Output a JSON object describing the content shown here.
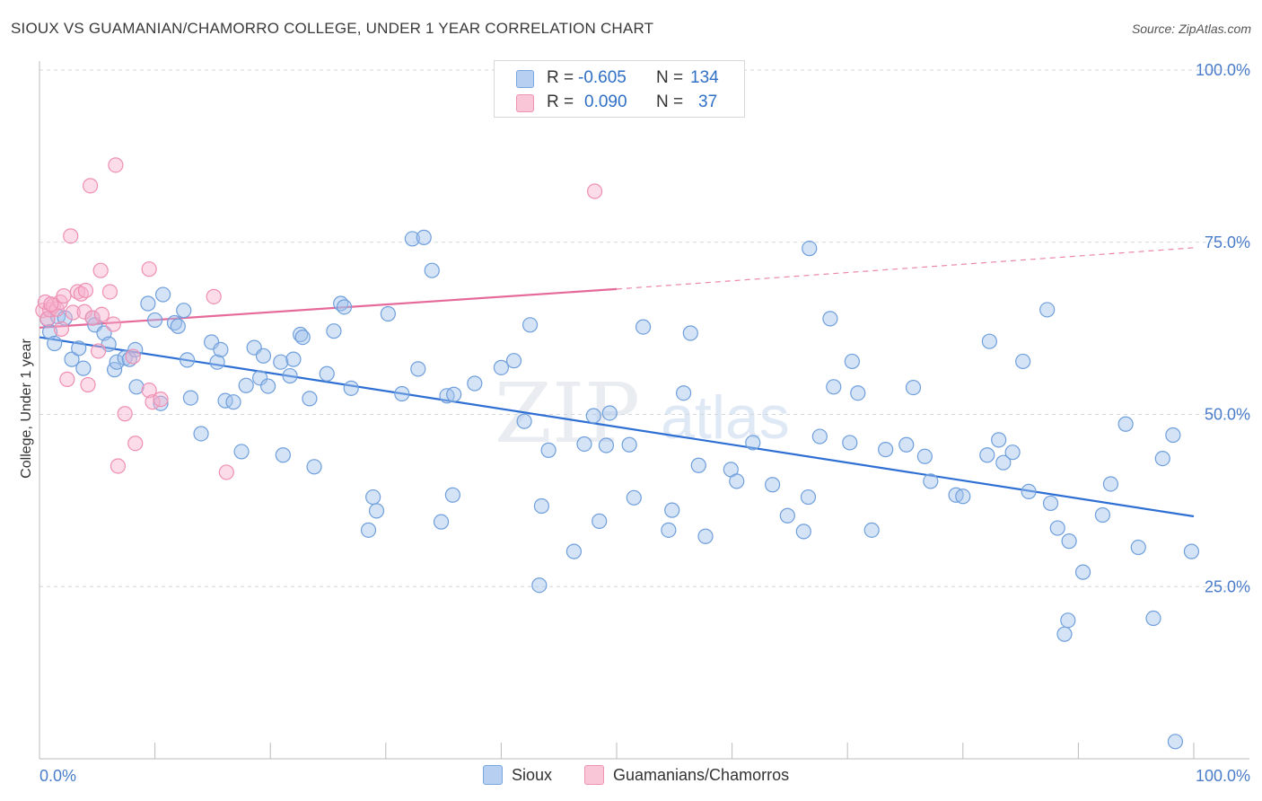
{
  "title": "SIOUX VS GUAMANIAN/CHAMORRO COLLEGE, UNDER 1 YEAR CORRELATION CHART",
  "source": "Source: ZipAtlas.com",
  "watermark": {
    "zip": "ZIP",
    "atlas": "atlas"
  },
  "stats": [
    {
      "r_label": "R =",
      "r_value": "-0.605",
      "n_label": "N =",
      "n_value": "134"
    },
    {
      "r_label": "R =",
      "r_value": "0.090",
      "n_label": "N =",
      "n_value": "37"
    }
  ],
  "chart_data": {
    "type": "scatter",
    "title": "SIOUX VS GUAMANIAN/CHAMORRO COLLEGE, UNDER 1 YEAR CORRELATION CHART",
    "xlabel": "",
    "ylabel": "College, Under 1 year",
    "xlim": [
      0,
      100
    ],
    "ylim": [
      0,
      100
    ],
    "x_tick_labels": [
      "0.0%",
      "100.0%"
    ],
    "y_tick_labels": [
      "25.0%",
      "50.0%",
      "75.0%",
      "100.0%"
    ],
    "y_ticks": [
      25,
      50,
      75,
      100
    ],
    "grid": "horizontal dashed",
    "legend_position": "bottom",
    "colors": {
      "sioux": "#6fa3e0",
      "sioux_line": "#2e6fd4",
      "guam": "#f08fb0",
      "guam_line": "#e5699a",
      "tick_text": "#4a7cc9"
    },
    "series": [
      {
        "name": "Sioux",
        "color": "#6fa3e0",
        "trend": {
          "x": [
            0,
            100
          ],
          "y": [
            61.2,
            35.2
          ],
          "dashed_from": null
        },
        "points": [
          [
            0.7,
            63.8
          ],
          [
            0.9,
            62
          ],
          [
            1.3,
            60.3
          ],
          [
            1.6,
            64.2
          ],
          [
            2.2,
            64
          ],
          [
            2.8,
            58
          ],
          [
            3.4,
            59.6
          ],
          [
            3.8,
            56.7
          ],
          [
            4.6,
            64
          ],
          [
            4.8,
            63
          ],
          [
            5.6,
            61.8
          ],
          [
            6,
            60.2
          ],
          [
            6.5,
            56.5
          ],
          [
            6.7,
            57.6
          ],
          [
            7.4,
            58.2
          ],
          [
            7.8,
            58
          ],
          [
            8.3,
            59.4
          ],
          [
            8.4,
            54
          ],
          [
            9.4,
            66.1
          ],
          [
            10,
            63.7
          ],
          [
            10.5,
            51.6
          ],
          [
            10.7,
            67.4
          ],
          [
            11.7,
            63.3
          ],
          [
            12,
            62.8
          ],
          [
            12.5,
            65.1
          ],
          [
            12.8,
            57.9
          ],
          [
            13.1,
            52.4
          ],
          [
            14,
            47.2
          ],
          [
            14.9,
            60.5
          ],
          [
            15.4,
            57.6
          ],
          [
            15.7,
            59.4
          ],
          [
            16.1,
            52
          ],
          [
            16.8,
            51.8
          ],
          [
            17.5,
            44.6
          ],
          [
            17.9,
            54.2
          ],
          [
            18.6,
            59.7
          ],
          [
            19.1,
            55.3
          ],
          [
            19.4,
            58.5
          ],
          [
            19.8,
            54.1
          ],
          [
            20.9,
            57.6
          ],
          [
            21.1,
            44.1
          ],
          [
            21.7,
            55.6
          ],
          [
            22,
            58
          ],
          [
            22.6,
            61.6
          ],
          [
            22.8,
            61.2
          ],
          [
            23.4,
            52.3
          ],
          [
            23.8,
            42.4
          ],
          [
            24.9,
            55.9
          ],
          [
            25.5,
            62.1
          ],
          [
            26.1,
            66.1
          ],
          [
            26.4,
            65.6
          ],
          [
            27,
            53.8
          ],
          [
            28.5,
            33.2
          ],
          [
            28.9,
            38
          ],
          [
            29.2,
            36
          ],
          [
            30.2,
            64.6
          ],
          [
            31.4,
            53
          ],
          [
            32.3,
            75.5
          ],
          [
            32.8,
            56.6
          ],
          [
            33.3,
            75.7
          ],
          [
            34,
            70.9
          ],
          [
            34.8,
            34.4
          ],
          [
            35.3,
            52.7
          ],
          [
            35.8,
            38.3
          ],
          [
            35.9,
            52.9
          ],
          [
            37.7,
            54.5
          ],
          [
            40,
            56.8
          ],
          [
            41.1,
            57.8
          ],
          [
            42,
            49
          ],
          [
            42.5,
            63
          ],
          [
            43.3,
            25.2
          ],
          [
            43.5,
            36.7
          ],
          [
            44.1,
            44.8
          ],
          [
            46.3,
            30.1
          ],
          [
            47.2,
            45.7
          ],
          [
            48,
            49.8
          ],
          [
            48.5,
            34.5
          ],
          [
            49.1,
            45.5
          ],
          [
            49.4,
            50.2
          ],
          [
            51.1,
            45.6
          ],
          [
            51.5,
            37.9
          ],
          [
            52.3,
            62.7
          ],
          [
            54.5,
            33.2
          ],
          [
            54.8,
            36.1
          ],
          [
            55.8,
            53.1
          ],
          [
            56.4,
            61.8
          ],
          [
            57.1,
            42.6
          ],
          [
            57.7,
            32.3
          ],
          [
            59.9,
            42
          ],
          [
            60.4,
            40.3
          ],
          [
            61.8,
            45.9
          ],
          [
            63.5,
            39.8
          ],
          [
            64.8,
            35.3
          ],
          [
            66.2,
            33
          ],
          [
            66.6,
            38
          ],
          [
            66.7,
            74.1
          ],
          [
            67.6,
            46.8
          ],
          [
            68.5,
            63.9
          ],
          [
            68.8,
            54
          ],
          [
            70.2,
            45.9
          ],
          [
            70.4,
            57.7
          ],
          [
            70.9,
            53.1
          ],
          [
            72.1,
            33.2
          ],
          [
            73.3,
            44.9
          ],
          [
            75.1,
            45.6
          ],
          [
            75.7,
            53.9
          ],
          [
            76.7,
            43.9
          ],
          [
            77.2,
            40.3
          ],
          [
            79.4,
            38.3
          ],
          [
            80,
            38.1
          ],
          [
            82.1,
            44.1
          ],
          [
            82.3,
            60.6
          ],
          [
            83.1,
            46.3
          ],
          [
            83.5,
            43
          ],
          [
            84.3,
            44.5
          ],
          [
            85.2,
            57.7
          ],
          [
            85.7,
            38.8
          ],
          [
            87.3,
            65.2
          ],
          [
            87.6,
            37.1
          ],
          [
            88.2,
            33.5
          ],
          [
            88.8,
            18.1
          ],
          [
            89.1,
            20.1
          ],
          [
            89.2,
            31.6
          ],
          [
            90.4,
            27.1
          ],
          [
            92.1,
            35.4
          ],
          [
            92.8,
            39.9
          ],
          [
            94.1,
            48.6
          ],
          [
            95.2,
            30.7
          ],
          [
            96.5,
            20.4
          ],
          [
            97.3,
            43.6
          ],
          [
            98.2,
            47
          ],
          [
            98.4,
            2.5
          ],
          [
            99.8,
            30.1
          ]
        ]
      },
      {
        "name": "Guamanians/Chamorros",
        "color": "#f08fb0",
        "trend": {
          "x": [
            0,
            50,
            100
          ],
          "y": [
            62.6,
            68.2,
            74.2
          ],
          "dashed_from": 50
        },
        "points": [
          [
            0.3,
            65.1
          ],
          [
            0.5,
            66.3
          ],
          [
            0.7,
            63.9
          ],
          [
            0.9,
            65.2
          ],
          [
            1.2,
            65.8
          ],
          [
            1.5,
            65.3
          ],
          [
            1.8,
            66.3
          ],
          [
            1.9,
            62.4
          ],
          [
            2.1,
            67.2
          ],
          [
            2.4,
            55.1
          ],
          [
            2.7,
            75.9
          ],
          [
            2.9,
            64.8
          ],
          [
            3.3,
            67.8
          ],
          [
            3.6,
            67.5
          ],
          [
            3.9,
            64.9
          ],
          [
            4,
            68
          ],
          [
            4.2,
            54.3
          ],
          [
            4.4,
            83.2
          ],
          [
            4.6,
            64
          ],
          [
            5.1,
            59.2
          ],
          [
            5.3,
            70.9
          ],
          [
            5.4,
            64.5
          ],
          [
            6.1,
            67.8
          ],
          [
            6.4,
            63.1
          ],
          [
            6.6,
            86.2
          ],
          [
            6.8,
            42.5
          ],
          [
            7.4,
            50.1
          ],
          [
            8.1,
            58.4
          ],
          [
            8.3,
            45.8
          ],
          [
            9.5,
            53.5
          ],
          [
            9.5,
            71.1
          ],
          [
            9.8,
            51.8
          ],
          [
            10.5,
            52.2
          ],
          [
            15.1,
            67.1
          ],
          [
            16.2,
            41.6
          ],
          [
            48.1,
            82.4
          ],
          [
            1.0,
            66.0
          ]
        ]
      }
    ]
  },
  "legend": {
    "items": [
      {
        "label": "Sioux",
        "color": "#b7d0f2",
        "border": "#7aa6e0"
      },
      {
        "label": "Guamanians/Chamorros",
        "color": "#f9c6d7",
        "border": "#ee93b3"
      }
    ]
  }
}
